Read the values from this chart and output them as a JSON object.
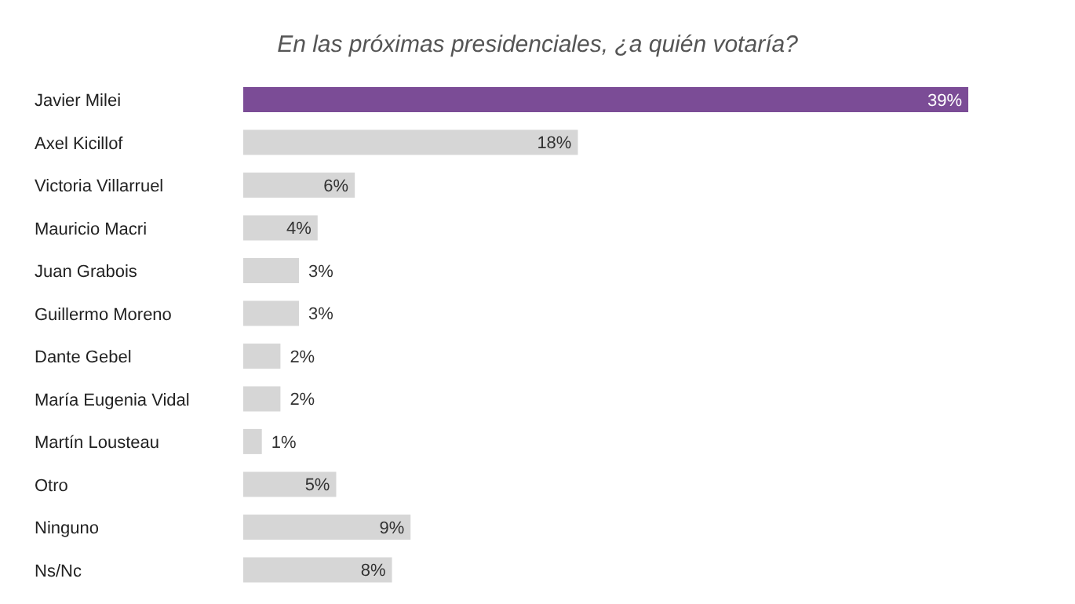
{
  "chart_data": {
    "type": "bar",
    "orientation": "horizontal",
    "title": "En las próximas presidenciales, ¿a quién votaría?",
    "categories": [
      "Javier Milei",
      "Axel Kicillof",
      "Victoria Villarruel",
      "Mauricio Macri",
      "Juan Grabois",
      "Guillermo Moreno",
      "Dante Gebel",
      "María Eugenia Vidal",
      "Martín Lousteau",
      "Otro",
      "Ninguno",
      "Ns/Nc"
    ],
    "values": [
      39,
      18,
      6,
      4,
      3,
      3,
      2,
      2,
      1,
      5,
      9,
      8
    ],
    "value_labels": [
      "39%",
      "18%",
      "6%",
      "4%",
      "3%",
      "3%",
      "2%",
      "2%",
      "1%",
      "5%",
      "9%",
      "8%"
    ],
    "colors": [
      "#7b4c96",
      "#d6d6d6",
      "#d6d6d6",
      "#d6d6d6",
      "#d6d6d6",
      "#d6d6d6",
      "#d6d6d6",
      "#d6d6d6",
      "#d6d6d6",
      "#d6d6d6",
      "#d6d6d6",
      "#d6d6d6"
    ],
    "grid": false,
    "legend": false
  }
}
